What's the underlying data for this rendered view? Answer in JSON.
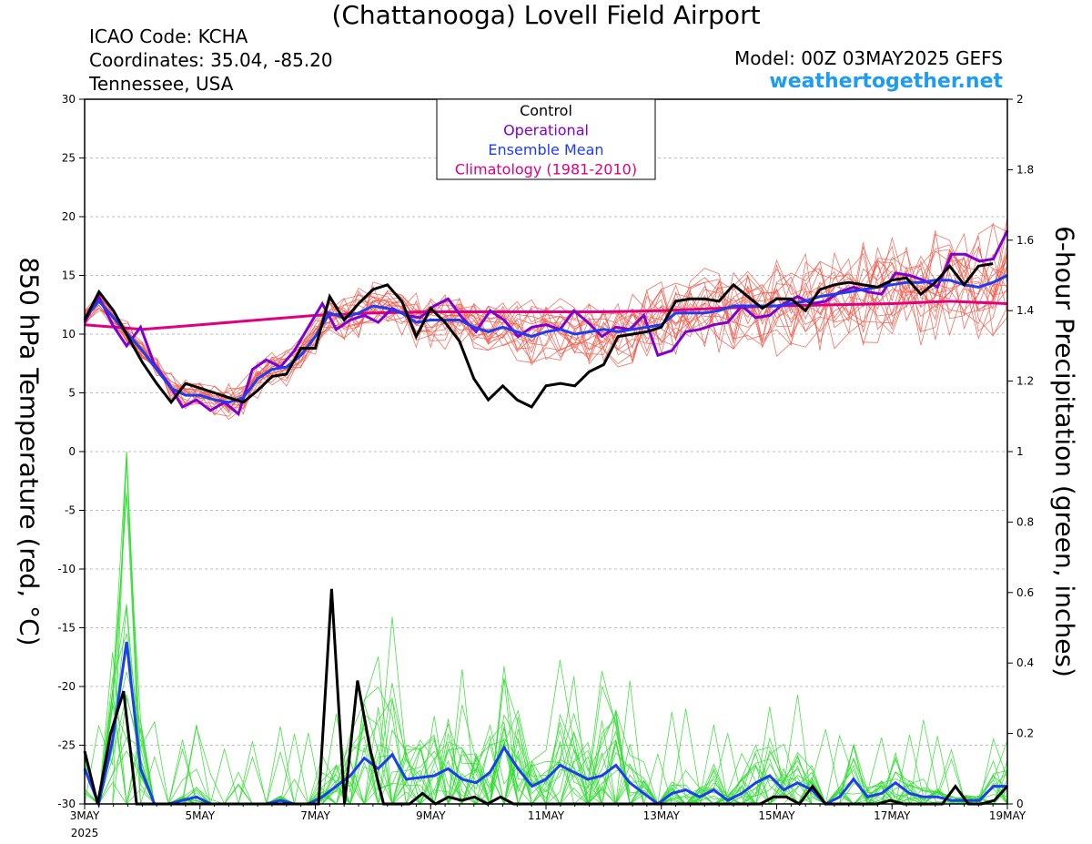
{
  "header": {
    "title": "(Chattanooga) Lovell Field Airport",
    "icao": "ICAO Code: KCHA",
    "coords": "Coordinates: 35.04, -85.20",
    "region": "Tennessee, USA",
    "model": "Model: 00Z 03MAY2025 GEFS",
    "site": "weathertogether.net"
  },
  "axes": {
    "left_label": "850 hPa Temperature (red, °C)",
    "right_label": "6-hour Precipitation (green, inches)"
  },
  "chart_data": {
    "type": "line",
    "x_ticks": [
      "3MAY",
      "5MAY",
      "7MAY",
      "9MAY",
      "11MAY",
      "13MAY",
      "15MAY",
      "17MAY",
      "19MAY"
    ],
    "x_year": "2025",
    "xlim_days": [
      0,
      16
    ],
    "y_left": {
      "ylim": [
        -30,
        30
      ],
      "ticks": [
        "30",
        "25",
        "20",
        "15",
        "10",
        "5",
        "0",
        "-5",
        "-10",
        "-15",
        "-20",
        "-25",
        "-30"
      ]
    },
    "y_right": {
      "ylim": [
        0,
        2
      ],
      "ticks": [
        "2",
        "1.8",
        "1.6",
        "1.4",
        "1.2",
        "1",
        "0.8",
        "0.6",
        "0.4",
        "0.2",
        "0"
      ]
    },
    "legend": {
      "placement": "top-center",
      "entries": [
        {
          "name": "Control",
          "color": "#000000"
        },
        {
          "name": "Operational",
          "color": "#8000d0"
        },
        {
          "name": "Ensemble Mean",
          "color": "#1e3cf0"
        },
        {
          "name": "Climatology (1981-2010)",
          "color": "#e0007f"
        }
      ]
    },
    "temperature": {
      "control": [
        11.2,
        13.6,
        12,
        9.8,
        7.6,
        5.8,
        4.2,
        5.8,
        5.4,
        5,
        4.6,
        4.2,
        5.2,
        6.4,
        6.6,
        8.8,
        8.8,
        13.2,
        11.2,
        12.6,
        13.8,
        14.2,
        12.8,
        9.8,
        12.2,
        11,
        9.4,
        6.2,
        4.4,
        5.6,
        4.4,
        3.8,
        5.6,
        5.8,
        5.6,
        6.8,
        7.4,
        9.8,
        10,
        10.2,
        10.6,
        12.8,
        13,
        13,
        12.8,
        14.2,
        13.2,
        12.2,
        13,
        13,
        12,
        13.8,
        14.2,
        14.4,
        14.2,
        14,
        14.6,
        14.8,
        13.4,
        14.4,
        15.8,
        14.2,
        15.8,
        16
      ],
      "operational": [
        11,
        13.2,
        10.8,
        9,
        10.6,
        7.4,
        5.8,
        3.8,
        4.4,
        3.5,
        4.2,
        3.2,
        7,
        7.8,
        7.2,
        8.6,
        10.6,
        12.6,
        10.4,
        11.2,
        11.6,
        11,
        12.2,
        11.6,
        11.4,
        12.4,
        13,
        11.4,
        10.2,
        12,
        11.2,
        9.8,
        10.6,
        10.8,
        10.4,
        12,
        11,
        9.8,
        10.6,
        10.4,
        11.6,
        8.2,
        8.6,
        10.2,
        10.4,
        10.8,
        11,
        12.4,
        11.4,
        11.6,
        12.6,
        13.2,
        12.6,
        12.8,
        13.6,
        14,
        13.6,
        13.4,
        15.2,
        15,
        14.6,
        14,
        16.8,
        16.8,
        16.2,
        16.4,
        18.8
      ],
      "mean": [
        11.4,
        12.8,
        11.4,
        10,
        8.6,
        7,
        5.4,
        4.8,
        4.8,
        4.4,
        4.2,
        4.6,
        6.2,
        7,
        7.2,
        8.2,
        9.8,
        11.8,
        11.4,
        11.8,
        12.4,
        12.2,
        11.8,
        11,
        11.2,
        11.2,
        11.2,
        10.6,
        10.2,
        10.6,
        10.2,
        9.8,
        10.2,
        10.4,
        10,
        10.2,
        10.4,
        10.2,
        10.4,
        10.6,
        10.8,
        11.8,
        11.8,
        11.8,
        12,
        12.4,
        12.4,
        12.4,
        12.4,
        12.6,
        12.8,
        13.2,
        13.4,
        13.6,
        13.8,
        14,
        14.2,
        14.4,
        14.4,
        14.6,
        14.6,
        14.2,
        14,
        14.4,
        15
      ],
      "climatology": [
        {
          "d": 0,
          "v": 10.8
        },
        {
          "d": 1,
          "v": 10.4
        },
        {
          "d": 2,
          "v": 10.8
        },
        {
          "d": 3,
          "v": 11.2
        },
        {
          "d": 4,
          "v": 11.6
        },
        {
          "d": 5,
          "v": 11.8
        },
        {
          "d": 6,
          "v": 11.9
        },
        {
          "d": 7,
          "v": 11.9
        },
        {
          "d": 8,
          "v": 11.9
        },
        {
          "d": 9,
          "v": 11.9
        },
        {
          "d": 10,
          "v": 12
        },
        {
          "d": 11,
          "v": 12.2
        },
        {
          "d": 12,
          "v": 12.4
        },
        {
          "d": 13,
          "v": 12.5
        },
        {
          "d": 14,
          "v": 12.6
        },
        {
          "d": 15,
          "v": 12.8
        },
        {
          "d": 16,
          "v": 12.6
        }
      ]
    },
    "precipitation": {
      "control": [
        0.15,
        0,
        0.2,
        0.32,
        0,
        0,
        0,
        0,
        0,
        0,
        0,
        0,
        0,
        0,
        0,
        0,
        0,
        0,
        0,
        0.61,
        0,
        0.35,
        0.15,
        0,
        0,
        0,
        0.03,
        0,
        0.02,
        0.01,
        0.02,
        0,
        0.02,
        0,
        0,
        0,
        0,
        0,
        0,
        0,
        0,
        0,
        0,
        0,
        0,
        0,
        0,
        0,
        0,
        0,
        0,
        0,
        0,
        0.02,
        0.02,
        0,
        0.05,
        0,
        0,
        0,
        0,
        0,
        0.01,
        0,
        0,
        0,
        0,
        0.05,
        0,
        0,
        0.01,
        0.05
      ],
      "mean": [
        0.1,
        0,
        0.18,
        0.46,
        0.1,
        0,
        0,
        0.01,
        0.02,
        0,
        0,
        0,
        0,
        0,
        0.01,
        0,
        0,
        0.02,
        0.05,
        0.08,
        0.13,
        0.1,
        0.14,
        0.07,
        0.075,
        0.08,
        0.1,
        0.07,
        0.06,
        0.09,
        0.16,
        0.1,
        0.05,
        0.07,
        0.11,
        0.09,
        0.07,
        0.08,
        0.11,
        0.06,
        0.03,
        0,
        0.03,
        0.04,
        0.02,
        0.04,
        0.01,
        0.03,
        0.06,
        0.08,
        0.04,
        0.06,
        0.04,
        0,
        0.02,
        0.07,
        0.02,
        0.03,
        0.06,
        0.03,
        0.02,
        0.02,
        0.01,
        0.01,
        0.01,
        0.05,
        0.05
      ]
    }
  }
}
